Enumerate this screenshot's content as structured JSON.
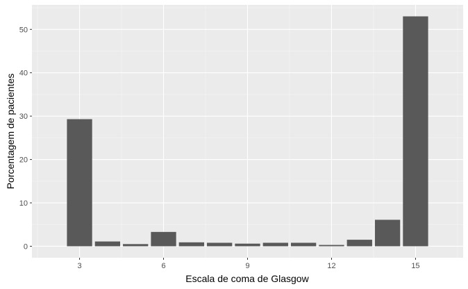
{
  "chart_data": {
    "type": "bar",
    "x": [
      3,
      4,
      5,
      6,
      7,
      8,
      9,
      10,
      11,
      12,
      13,
      14,
      15
    ],
    "values": [
      29.3,
      1.1,
      0.5,
      3.3,
      0.9,
      0.8,
      0.6,
      0.8,
      0.8,
      0.3,
      1.5,
      6.1,
      53.0
    ],
    "xticks": [
      3,
      6,
      9,
      12,
      15
    ],
    "yticks": [
      0,
      10,
      20,
      30,
      40,
      50
    ],
    "xlim": [
      1.3,
      16.7
    ],
    "ylim": [
      -2.65,
      55.65
    ],
    "xlabel": "Escala de coma de Glasgow",
    "ylabel": "Porcentagem de pacientes",
    "grid": true,
    "colors": {
      "bar": "#595959",
      "panel": "#ebebeb",
      "grid_major": "#ffffff",
      "grid_minor": "#f5f5f5"
    }
  }
}
